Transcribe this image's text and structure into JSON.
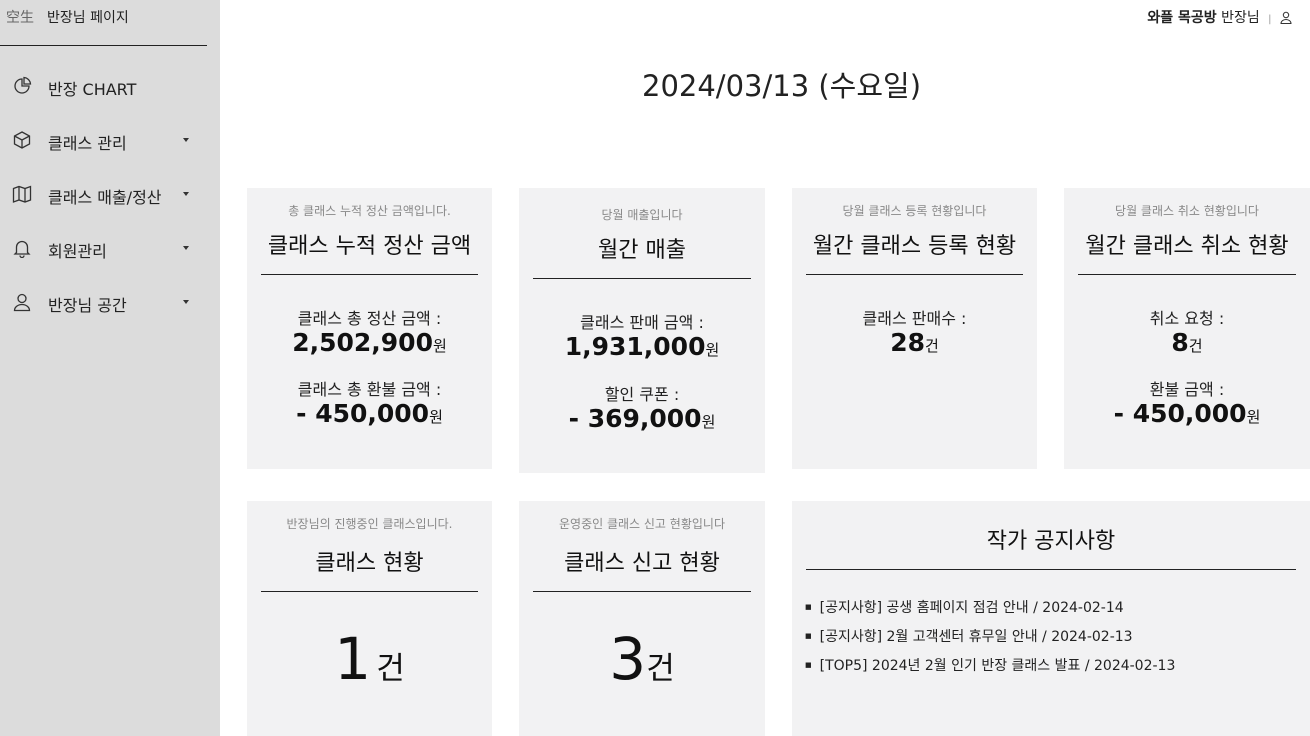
{
  "sidebar": {
    "logo_text": "空生",
    "title": "반장님 페이지",
    "items": [
      {
        "label": "반장 CHART",
        "icon": "pie-chart-icon"
      },
      {
        "label": "클래스 관리",
        "icon": "box-icon"
      },
      {
        "label": "클래스 매출/정산",
        "icon": "map-icon"
      },
      {
        "label": "회원관리",
        "icon": "bell-icon"
      },
      {
        "label": "반장님 공간",
        "icon": "user-icon"
      }
    ]
  },
  "header": {
    "workshop_name": "와플 목공방",
    "role": "반장님",
    "separator": "|",
    "user_icon": "user-icon"
  },
  "date": "2024/03/13 (수요일)",
  "cards": {
    "settlement": {
      "subtitle": "총 클래스 누적 정산 금액입니다.",
      "title": "클래스 누적 정산 금액",
      "label1": "클래스 총 정산 금액 :",
      "value1": "2,502,900",
      "unit1": "원",
      "label2": "클래스 총 환불 금액 :",
      "value2": "- 450,000",
      "unit2": "원"
    },
    "monthly_sales": {
      "subtitle": "당월 매출입니다",
      "title": "월간 매출",
      "label1": "클래스 판매 금액 :",
      "value1": "1,931,000",
      "unit1": "원",
      "label2": "할인 쿠폰 :",
      "value2": "- 369,000",
      "unit2": "원"
    },
    "monthly_registration": {
      "subtitle": "당월 클래스 등록 현황입니다",
      "title": "월간 클래스 등록 현황",
      "label1": "클래스 판매수 :",
      "value1": "28",
      "unit1": "건"
    },
    "monthly_cancel": {
      "subtitle": "당월 클래스 취소 현황입니다",
      "title": "월간 클래스 취소 현황",
      "label1": "취소 요청 :",
      "value1": "8",
      "unit1": "건",
      "label2": "환불 금액 :",
      "value2": "- 450,000",
      "unit2": "원"
    },
    "class_status": {
      "subtitle": "반장님의 진행중인 클래스입니다.",
      "title": "클래스 현황",
      "value": "1",
      "unit": "건"
    },
    "report_status": {
      "subtitle": "운영중인 클래스 신고 현황입니다",
      "title": "클래스 신고 현황",
      "value": "3",
      "unit": "건"
    },
    "notices": {
      "title": "작가 공지사항",
      "items": [
        "[공지사항] 공생 홈페이지 점검 안내 / 2024-02-14",
        "[공지사항] 2월 고객센터 휴무일 안내 / 2024-02-13",
        "[TOP5] 2024년 2월 인기 반장 클래스 발표 / 2024-02-13"
      ]
    }
  }
}
